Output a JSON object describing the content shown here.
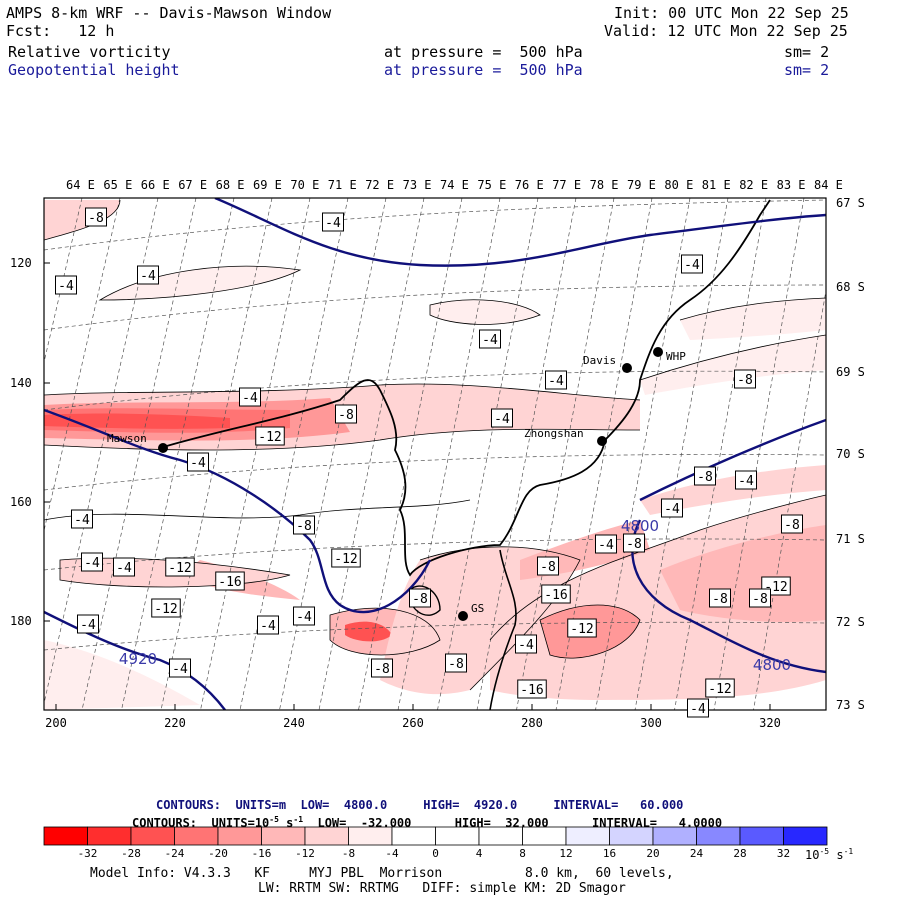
{
  "header": {
    "title": "AMPS 8-km WRF -- Davis-Mawson Window",
    "forecast": "Fcst:   12 h",
    "init": "Init: 00 UTC Mon 22 Sep 25",
    "valid": "Valid: 12 UTC Mon 22 Sep 25",
    "field1_name": "Relative vorticity",
    "field1_level": "at pressure =  500 hPa",
    "field1_sm": "sm= 2",
    "field2_name": "Geopotential height",
    "field2_level": "at pressure =  500 hPa",
    "field2_sm": "sm= 2"
  },
  "map": {
    "top_lon_labels": [
      "64 E",
      "65 E",
      "66 E",
      "67 E",
      "68 E",
      "69 E",
      "70 E",
      "71 E",
      "72 E",
      "73 E",
      "74 E",
      "75 E",
      "76 E",
      "77 E",
      "78 E",
      "79 E",
      "80 E",
      "81 E",
      "82 E",
      "83 E",
      "84 E"
    ],
    "right_lat_labels": [
      "67 S",
      "68 S",
      "69 S",
      "70 S",
      "71 S",
      "72 S",
      "73 S"
    ],
    "left_y_labels": [
      "120",
      "140",
      "160",
      "180"
    ],
    "bottom_x_labels": [
      "200",
      "220",
      "240",
      "260",
      "280",
      "300",
      "320"
    ],
    "stations": [
      {
        "name": "Davis"
      },
      {
        "name": "WHP"
      },
      {
        "name": "Zhongshan"
      },
      {
        "name": "Mawson"
      },
      {
        "name": "GS"
      }
    ],
    "vort_labels": [
      "-8",
      "-4",
      "-4",
      "-4",
      "-4",
      "-4",
      "-4",
      "-4",
      "-8",
      "-8",
      "-4",
      "-12",
      "-4",
      "-8",
      "-4",
      "-4",
      "-8",
      "-4",
      "-8",
      "-4",
      "-4",
      "-12",
      "-16",
      "-12",
      "-16",
      "-12",
      "-8",
      "-4",
      "-4",
      "-4",
      "-8",
      "-12",
      "-4",
      "-16",
      "-4",
      "-8",
      "-8",
      "-12",
      "-4",
      "-12",
      "-8",
      "-4",
      "-8",
      "-8"
    ],
    "height_labels": [
      "4920",
      "4800",
      "4800"
    ]
  },
  "legend": {
    "contours_line1": "CONTOURS:  UNITS=m  LOW=  4800.0     HIGH=  4920.0     INTERVAL=   60.000",
    "contours_line2": "CONTOURS:  UNITS=10",
    "contours_line2_exp": "-5",
    "contours_line2_rest": " s",
    "contours_line2_exp2": "-1",
    "contours_line2_tail": "  LOW=  -32.000      HIGH=  32.000      INTERVAL=   4.0000",
    "colorbar_ticks": [
      "-32",
      "-28",
      "-24",
      "-20",
      "-16",
      "-12",
      "-8",
      "-4",
      "0",
      "4",
      "8",
      "12",
      "16",
      "20",
      "24",
      "28",
      "32"
    ],
    "colorbar_unit": "10",
    "colorbar_unit_exp": "-5",
    "colorbar_unit_s": "s",
    "colorbar_unit_exp2": "-1",
    "colors": [
      "#ff0000",
      "#ff2e2e",
      "#ff5252",
      "#ff7474",
      "#ff9898",
      "#ffb8b8",
      "#ffd4d4",
      "#ffeeee",
      "#ffffff",
      "#ffffff",
      "#eeeeff",
      "#d4d4ff",
      "#b0b0ff",
      "#8888ff",
      "#5a5aff",
      "#2828ff",
      "#0000ff"
    ]
  },
  "footer": {
    "model_info": "Model Info: V4.3.3   KF     MYJ PBL  Morrison",
    "resolution": "8.0 km,  60 levels,",
    "physics": "LW: RRTM SW: RRTMG   DIFF: simple KM: 2D Smagor"
  }
}
